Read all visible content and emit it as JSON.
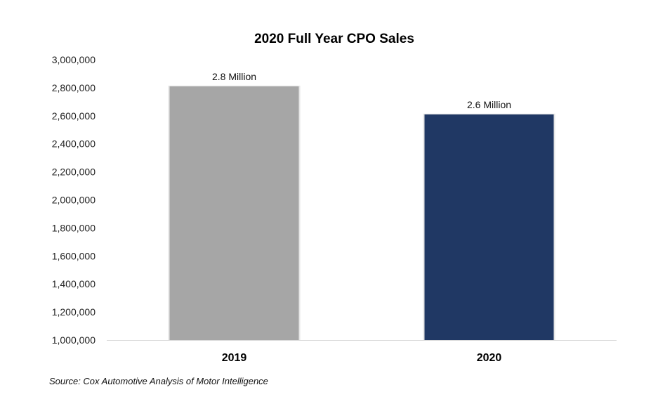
{
  "chart_data": {
    "type": "bar",
    "title": "2020 Full Year CPO Sales",
    "xlabel": "",
    "ylabel": "",
    "categories": [
      "2019",
      "2020"
    ],
    "values": [
      2810000,
      2610000
    ],
    "data_labels": [
      "2.8 Million",
      "2.6 Million"
    ],
    "bar_colors": [
      "#A6A6A6",
      "#203864"
    ],
    "ylim": [
      1000000,
      3000000
    ],
    "yticks": [
      1000000,
      1200000,
      1400000,
      1600000,
      1800000,
      2000000,
      2200000,
      2400000,
      2600000,
      2800000,
      3000000
    ],
    "ytick_labels": [
      "1,000,000",
      "1,200,000",
      "1,400,000",
      "1,600,000",
      "1,800,000",
      "2,000,000",
      "2,200,000",
      "2,400,000",
      "2,600,000",
      "2,800,000",
      "3,000,000"
    ],
    "grid": false,
    "legend": "none"
  },
  "source_note": "Source: Cox Automotive Analysis of Motor Intelligence"
}
